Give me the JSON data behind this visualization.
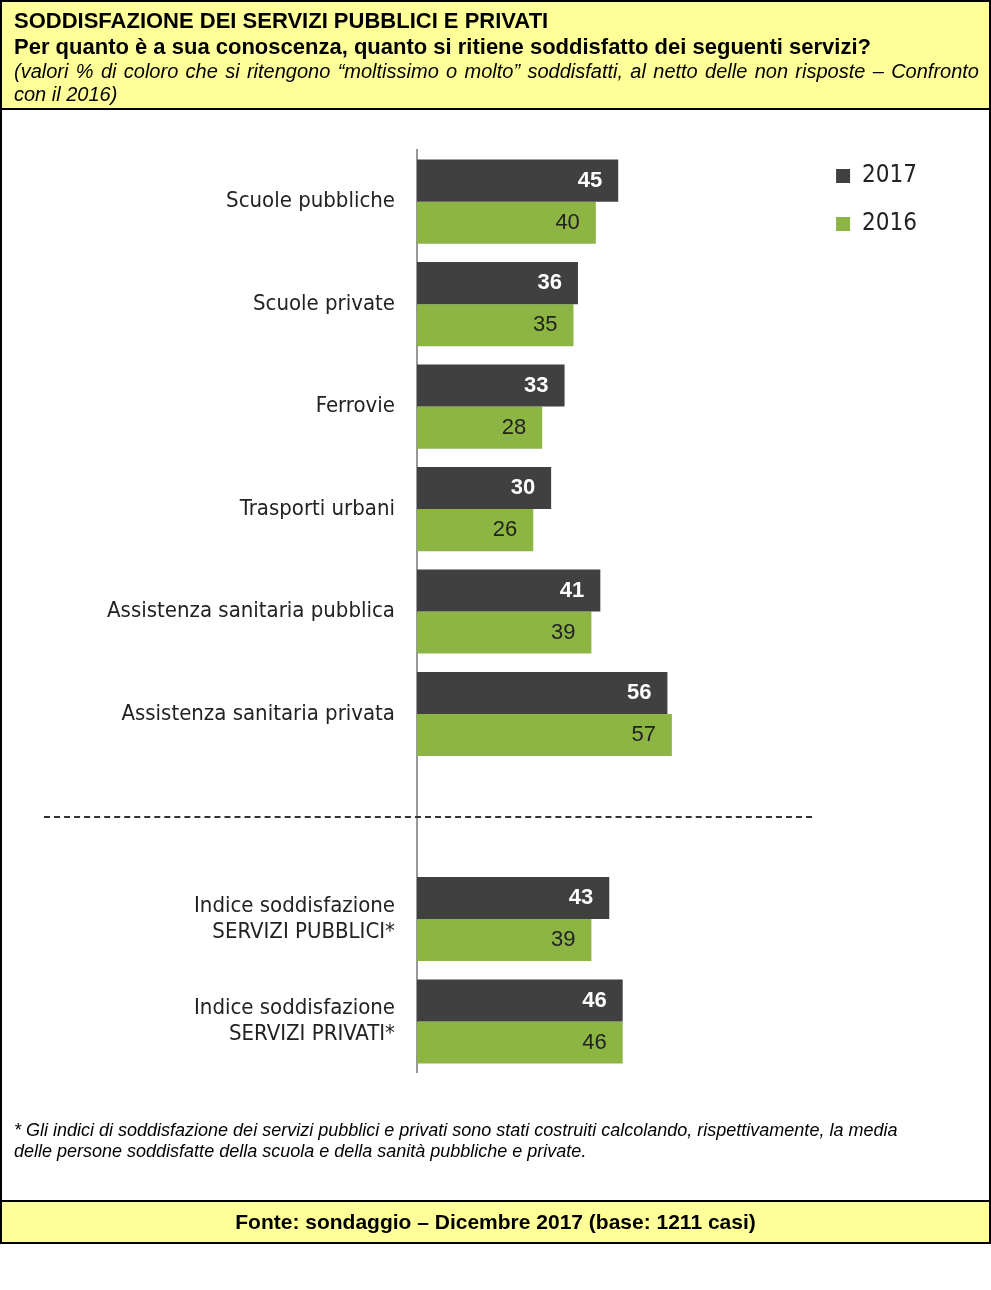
{
  "chart_data": {
    "type": "bar",
    "orientation": "horizontal",
    "title": "SODDISFAZIONE DEI SERVIZI PUBBLICI E PRIVATI",
    "subtitle": "Per quanto è a sua conoscenza, quanto si ritiene soddisfatto dei seguenti servizi?",
    "categories": [
      "Scuole pubbliche",
      "Scuole private",
      "Ferrovie",
      "Trasporti urbani",
      "Assistenza sanitaria pubblica",
      "Assistenza sanitaria privata",
      null,
      "Indice soddisfazione\nSERVIZI PUBBLICI*",
      "Indice soddisfazione\nSERVIZI PRIVATI*"
    ],
    "series": [
      {
        "name": "2017",
        "color": "#404040",
        "values": [
          45,
          36,
          33,
          30,
          41,
          56,
          null,
          43,
          46
        ]
      },
      {
        "name": "2016",
        "color": "#8db543",
        "values": [
          40,
          35,
          28,
          26,
          39,
          57,
          null,
          39,
          46
        ]
      }
    ],
    "data_labels": true,
    "legend": "right",
    "annotations": [
      "(valori % di coloro che si ritengono “moltissimo o molto” soddisfatti, al netto delle non risposte – Confronto con il 2016)",
      "* Gli indici di soddisfazione dei servizi pubblici e privati sono stati costruiti calcolando, rispettivamente, la media delle persone soddisfatte della scuola e della sanità pubbliche e private.",
      "Fonte: sondaggio – Dicembre 2017 (base: 1211 casi)"
    ]
  }
}
